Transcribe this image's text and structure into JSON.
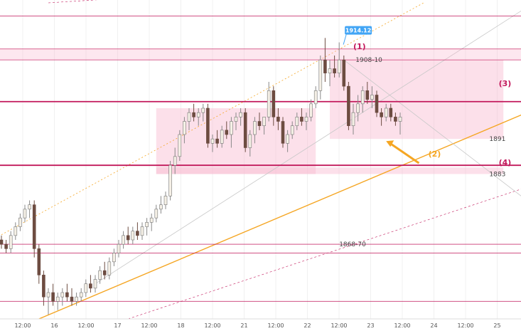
{
  "chart_data": {
    "type": "candlestick",
    "x_tick_labels": [
      "12:00",
      "16",
      "12:00",
      "17",
      "12:00",
      "18",
      "12:00",
      "21",
      "12:00",
      "22",
      "12:00",
      "23",
      "12:00",
      "24",
      "12:00",
      "25"
    ],
    "ylim": [
      1850,
      1922
    ],
    "candles": [
      [
        1868,
        1869,
        1866,
        1867
      ],
      [
        1867,
        1868,
        1865,
        1866
      ],
      [
        1866,
        1870,
        1865,
        1869
      ],
      [
        1869,
        1872,
        1868,
        1871
      ],
      [
        1871,
        1874,
        1870,
        1873
      ],
      [
        1873,
        1876,
        1872,
        1875
      ],
      [
        1875,
        1877,
        1873,
        1876
      ],
      [
        1876,
        1877,
        1864,
        1866
      ],
      [
        1866,
        1867,
        1858,
        1860
      ],
      [
        1860,
        1861,
        1853,
        1855
      ],
      [
        1855,
        1857,
        1851,
        1856
      ],
      [
        1856,
        1858,
        1853,
        1854
      ],
      [
        1854,
        1856,
        1852,
        1855
      ],
      [
        1855,
        1857,
        1853,
        1856
      ],
      [
        1856,
        1858,
        1854,
        1855
      ],
      [
        1855,
        1857,
        1853,
        1854
      ],
      [
        1854,
        1856,
        1853,
        1855
      ],
      [
        1855,
        1857,
        1854,
        1856
      ],
      [
        1856,
        1859,
        1855,
        1858
      ],
      [
        1858,
        1860,
        1856,
        1857
      ],
      [
        1857,
        1860,
        1856,
        1859
      ],
      [
        1859,
        1862,
        1858,
        1861
      ],
      [
        1861,
        1863,
        1859,
        1860
      ],
      [
        1860,
        1864,
        1859,
        1863
      ],
      [
        1863,
        1866,
        1862,
        1865
      ],
      [
        1865,
        1868,
        1864,
        1867
      ],
      [
        1867,
        1870,
        1866,
        1869
      ],
      [
        1869,
        1871,
        1867,
        1868
      ],
      [
        1868,
        1871,
        1867,
        1870
      ],
      [
        1870,
        1872,
        1868,
        1869
      ],
      [
        1869,
        1872,
        1868,
        1871
      ],
      [
        1871,
        1873,
        1869,
        1872
      ],
      [
        1872,
        1874,
        1870,
        1873
      ],
      [
        1873,
        1876,
        1872,
        1875
      ],
      [
        1875,
        1878,
        1874,
        1876
      ],
      [
        1876,
        1879,
        1875,
        1878
      ],
      [
        1878,
        1886,
        1877,
        1885
      ],
      [
        1885,
        1889,
        1883,
        1887
      ],
      [
        1887,
        1893,
        1886,
        1892
      ],
      [
        1892,
        1896,
        1890,
        1895
      ],
      [
        1895,
        1898,
        1893,
        1897
      ],
      [
        1897,
        1899,
        1895,
        1896
      ],
      [
        1896,
        1898,
        1894,
        1897
      ],
      [
        1897,
        1899,
        1895,
        1898
      ],
      [
        1898,
        1899,
        1889,
        1890
      ],
      [
        1890,
        1892,
        1888,
        1891
      ],
      [
        1891,
        1893,
        1889,
        1890
      ],
      [
        1890,
        1894,
        1889,
        1893
      ],
      [
        1893,
        1895,
        1891,
        1892
      ],
      [
        1892,
        1896,
        1889,
        1895
      ],
      [
        1895,
        1897,
        1893,
        1896
      ],
      [
        1896,
        1898,
        1894,
        1897
      ],
      [
        1897,
        1898,
        1888,
        1889
      ],
      [
        1889,
        1893,
        1887,
        1892
      ],
      [
        1892,
        1896,
        1890,
        1895
      ],
      [
        1895,
        1897,
        1893,
        1894
      ],
      [
        1894,
        1896,
        1892,
        1896
      ],
      [
        1896,
        1904,
        1895,
        1902
      ],
      [
        1902,
        1903,
        1894,
        1896
      ],
      [
        1896,
        1898,
        1893,
        1895
      ],
      [
        1895,
        1896,
        1889,
        1890
      ],
      [
        1890,
        1893,
        1888,
        1892
      ],
      [
        1892,
        1895,
        1891,
        1894
      ],
      [
        1894,
        1897,
        1893,
        1896
      ],
      [
        1896,
        1898,
        1894,
        1895
      ],
      [
        1895,
        1897,
        1893,
        1896
      ],
      [
        1896,
        1900,
        1895,
        1899
      ],
      [
        1899,
        1903,
        1898,
        1902
      ],
      [
        1902,
        1910,
        1900,
        1909
      ],
      [
        1909,
        1914,
        1904,
        1906
      ],
      [
        1906,
        1909,
        1903,
        1907
      ],
      [
        1907,
        1910,
        1905,
        1906
      ],
      [
        1906,
        1913,
        1905,
        1909
      ],
      [
        1909,
        1910,
        1902,
        1903
      ],
      [
        1903,
        1904,
        1893,
        1894
      ],
      [
        1894,
        1899,
        1892,
        1897
      ],
      [
        1897,
        1901,
        1895,
        1899
      ],
      [
        1899,
        1903,
        1897,
        1902
      ],
      [
        1902,
        1904,
        1899,
        1900
      ],
      [
        1900,
        1903,
        1898,
        1901
      ],
      [
        1901,
        1902,
        1896,
        1897
      ],
      [
        1897,
        1898,
        1894,
        1896
      ],
      [
        1896,
        1899,
        1895,
        1898
      ],
      [
        1898,
        1899,
        1895,
        1896
      ],
      [
        1896,
        1897,
        1894,
        1895
      ],
      [
        1895,
        1897,
        1892,
        1896
      ]
    ],
    "horizontal_levels": [
      1919,
      1911.5,
      1909,
      1899.5,
      1885,
      1867,
      1865,
      1854
    ],
    "level_labels": [
      {
        "text": "1908-10",
        "x_index": 75.5,
        "y": 1909
      },
      {
        "text": "1891",
        "x_index": 104,
        "y": 1891
      },
      {
        "text": "1883",
        "x_index": 104,
        "y": 1883
      },
      {
        "text": "1868-70",
        "x_index": 72,
        "y": 1867
      }
    ],
    "price_tag": {
      "text": "1914.12",
      "x_index": 73.5,
      "y": 1914.12
    },
    "zones": [
      {
        "x1": 33,
        "x2": 67,
        "y1": 1883,
        "y2": 1898
      },
      {
        "x1": 70,
        "x2": 107,
        "y1": 1891,
        "y2": 1909
      },
      {
        "x1": 33,
        "x2": 107,
        "y1": 1883,
        "y2": 1884.5
      }
    ],
    "annotations": [
      {
        "text": "(1)",
        "x_index": 75,
        "y": 1911.5,
        "color": "#c2185b"
      },
      {
        "text": "(2)",
        "x_index": 91,
        "y": 1887,
        "color": "#f5a623"
      },
      {
        "text": "(3)",
        "x_index": 106,
        "y": 1903,
        "color": "#c2185b"
      },
      {
        "text": "(4)",
        "x_index": 106,
        "y": 1885,
        "color": "#c2185b"
      }
    ],
    "colors": {
      "up": "#f5f0e6",
      "up_outline": "#777777",
      "down": "#6d4c41",
      "level": "#c2185b",
      "zone": "#f8bbd0",
      "trend": "#f5a623",
      "channel": "#c8c8c8",
      "price_tag": "#42a5f5"
    }
  }
}
